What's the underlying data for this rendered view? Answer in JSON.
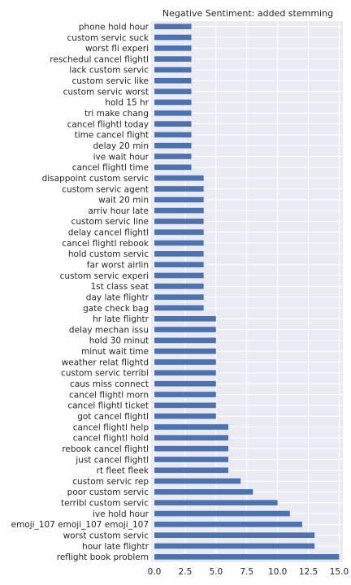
{
  "chart_data": {
    "type": "bar",
    "orientation": "horizontal",
    "title": "Negative Sentiment: added stemming",
    "xlabel": "",
    "ylabel": "",
    "xlim": [
      0,
      15.3
    ],
    "xticks": [
      0,
      2.5,
      5,
      7.5,
      10,
      12.5,
      15
    ],
    "xtick_labels": [
      "0.0",
      "2.5",
      "5.0",
      "7.5",
      "10.0",
      "12.5",
      "15.0"
    ],
    "grid": true,
    "bar_color": "#4c72b0",
    "background_color": "#eaeaf2",
    "categories": [
      "phone hold hour",
      "custom servic suck",
      "worst fli experi",
      "reschedul cancel flightl",
      "lack custom servic",
      "custom servic like",
      "custom servic worst",
      "hold 15 hr",
      "tri make chang",
      "cancel flightl today",
      "time cancel flight",
      "delay 20 min",
      "ive wait hour",
      "cancel flightl time",
      "disappoint custom servic",
      "custom servic agent",
      "wait 20 min",
      "arriv hour late",
      "custom servic line",
      "delay cancel flightl",
      "cancel flightl rebook",
      "hold custom servic",
      "far worst airlin",
      "custom servic experi",
      "1st class seat",
      "day late flightr",
      "gate check bag",
      "hr late flightr",
      "delay mechan issu",
      "hold 30 minut",
      "minut wait time",
      "weather relat flightd",
      "custom servic terribl",
      "caus miss connect",
      "cancel flightl morn",
      "cancel flightl ticket",
      "got cancel flightl",
      "cancel flightl help",
      "cancel flightl hold",
      "rebook cancel flightl",
      "just cancel flightl",
      "rt fleet fleek",
      "custom servic rep",
      "poor custom servic",
      "terribl custom servic",
      "ive hold hour",
      "emoji_107 emoji_107 emoji_107",
      "worst custom servic",
      "hour late flightr",
      "reflight book problem"
    ],
    "values": [
      3,
      3,
      3,
      3,
      3,
      3,
      3,
      3,
      3,
      3,
      3,
      3,
      3,
      3,
      4,
      4,
      4,
      4,
      4,
      4,
      4,
      4,
      4,
      4,
      4,
      4,
      4,
      5,
      5,
      5,
      5,
      5,
      5,
      5,
      5,
      5,
      5,
      6,
      6,
      6,
      6,
      6,
      7,
      8,
      10,
      11,
      12,
      13,
      13,
      15
    ]
  }
}
